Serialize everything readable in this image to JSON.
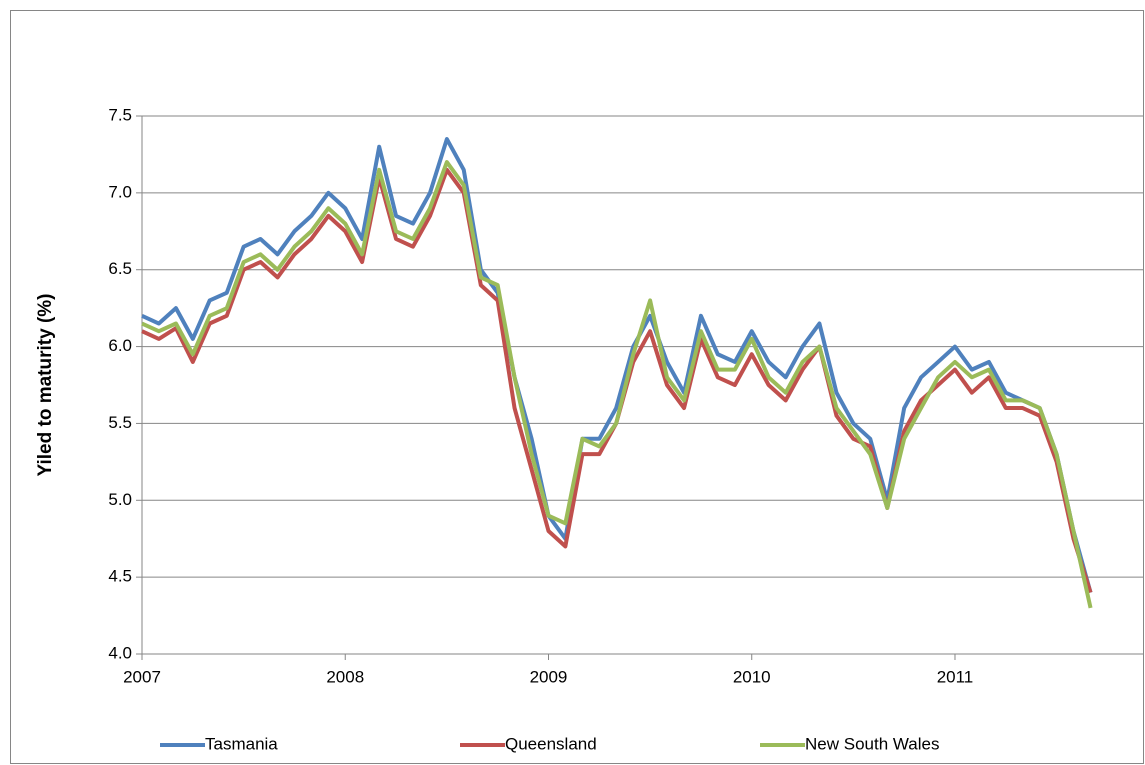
{
  "chart_data": {
    "type": "line",
    "y_label": "Yiled to maturity (%)",
    "x": [
      2007,
      2007.083,
      2007.167,
      2007.25,
      2007.333,
      2007.417,
      2007.5,
      2007.583,
      2007.667,
      2007.75,
      2007.833,
      2007.917,
      2008,
      2008.083,
      2008.167,
      2008.25,
      2008.333,
      2008.417,
      2008.5,
      2008.583,
      2008.667,
      2008.75,
      2008.833,
      2008.917,
      2009,
      2009.083,
      2009.167,
      2009.25,
      2009.333,
      2009.417,
      2009.5,
      2009.583,
      2009.667,
      2009.75,
      2009.833,
      2009.917,
      2010,
      2010.083,
      2010.167,
      2010.25,
      2010.333,
      2010.417,
      2010.5,
      2010.583,
      2010.667,
      2010.75,
      2010.833,
      2010.917,
      2011,
      2011.083,
      2011.167,
      2011.25,
      2011.333,
      2011.417,
      2011.5,
      2011.583,
      2011.667
    ],
    "series": [
      {
        "name": "Tasmania",
        "color": "#4f81bd",
        "values": [
          6.2,
          6.15,
          6.25,
          6.05,
          6.3,
          6.35,
          6.65,
          6.7,
          6.6,
          6.75,
          6.85,
          7.0,
          6.9,
          6.7,
          7.3,
          6.85,
          6.8,
          7.0,
          7.35,
          7.15,
          6.5,
          6.35,
          5.8,
          5.4,
          4.9,
          4.75,
          5.4,
          5.4,
          5.6,
          6.0,
          6.2,
          5.9,
          5.7,
          6.2,
          5.95,
          5.9,
          6.1,
          5.9,
          5.8,
          6.0,
          6.15,
          5.7,
          5.5,
          5.4,
          5.0,
          5.6,
          5.8,
          5.9,
          6.0,
          5.85,
          5.9,
          5.7,
          5.65,
          5.6,
          5.3,
          4.8,
          4.4
        ]
      },
      {
        "name": "Queensland",
        "color": "#c0504d",
        "values": [
          6.1,
          6.05,
          6.12,
          5.9,
          6.15,
          6.2,
          6.5,
          6.55,
          6.45,
          6.6,
          6.7,
          6.85,
          6.75,
          6.55,
          7.1,
          6.7,
          6.65,
          6.85,
          7.15,
          7.0,
          6.4,
          6.3,
          5.6,
          5.2,
          4.8,
          4.7,
          5.3,
          5.3,
          5.5,
          5.9,
          6.1,
          5.75,
          5.6,
          6.05,
          5.8,
          5.75,
          5.95,
          5.75,
          5.65,
          5.85,
          6.0,
          5.55,
          5.4,
          5.35,
          4.95,
          5.45,
          5.65,
          5.75,
          5.85,
          5.7,
          5.8,
          5.6,
          5.6,
          5.55,
          5.25,
          4.75,
          4.4
        ]
      },
      {
        "name": "New South Wales",
        "color": "#9bbb59",
        "values": [
          6.15,
          6.1,
          6.15,
          5.95,
          6.2,
          6.25,
          6.55,
          6.6,
          6.5,
          6.65,
          6.75,
          6.9,
          6.8,
          6.6,
          7.15,
          6.75,
          6.7,
          6.9,
          7.2,
          7.05,
          6.45,
          6.4,
          5.8,
          5.3,
          4.9,
          4.85,
          5.4,
          5.35,
          5.5,
          5.95,
          6.3,
          5.8,
          5.65,
          6.1,
          5.85,
          5.85,
          6.05,
          5.8,
          5.7,
          5.9,
          6.0,
          5.6,
          5.45,
          5.3,
          4.95,
          5.4,
          5.6,
          5.8,
          5.9,
          5.8,
          5.85,
          5.65,
          5.65,
          5.6,
          5.3,
          4.8,
          4.3
        ]
      }
    ],
    "xlim": [
      2007,
      2011.93
    ],
    "xticks": [
      2007,
      2008,
      2009,
      2010,
      2011
    ],
    "ylim": [
      4,
      7.5
    ],
    "yticks": [
      {
        "value": 4,
        "label": "4.0"
      },
      4.5,
      {
        "value": 5,
        "label": "5.0"
      },
      5.5,
      {
        "value": 6,
        "label": "6.0"
      },
      6.5,
      {
        "value": 7,
        "label": "7.0"
      },
      7.5
    ],
    "grid": true,
    "legend": "bottom"
  }
}
